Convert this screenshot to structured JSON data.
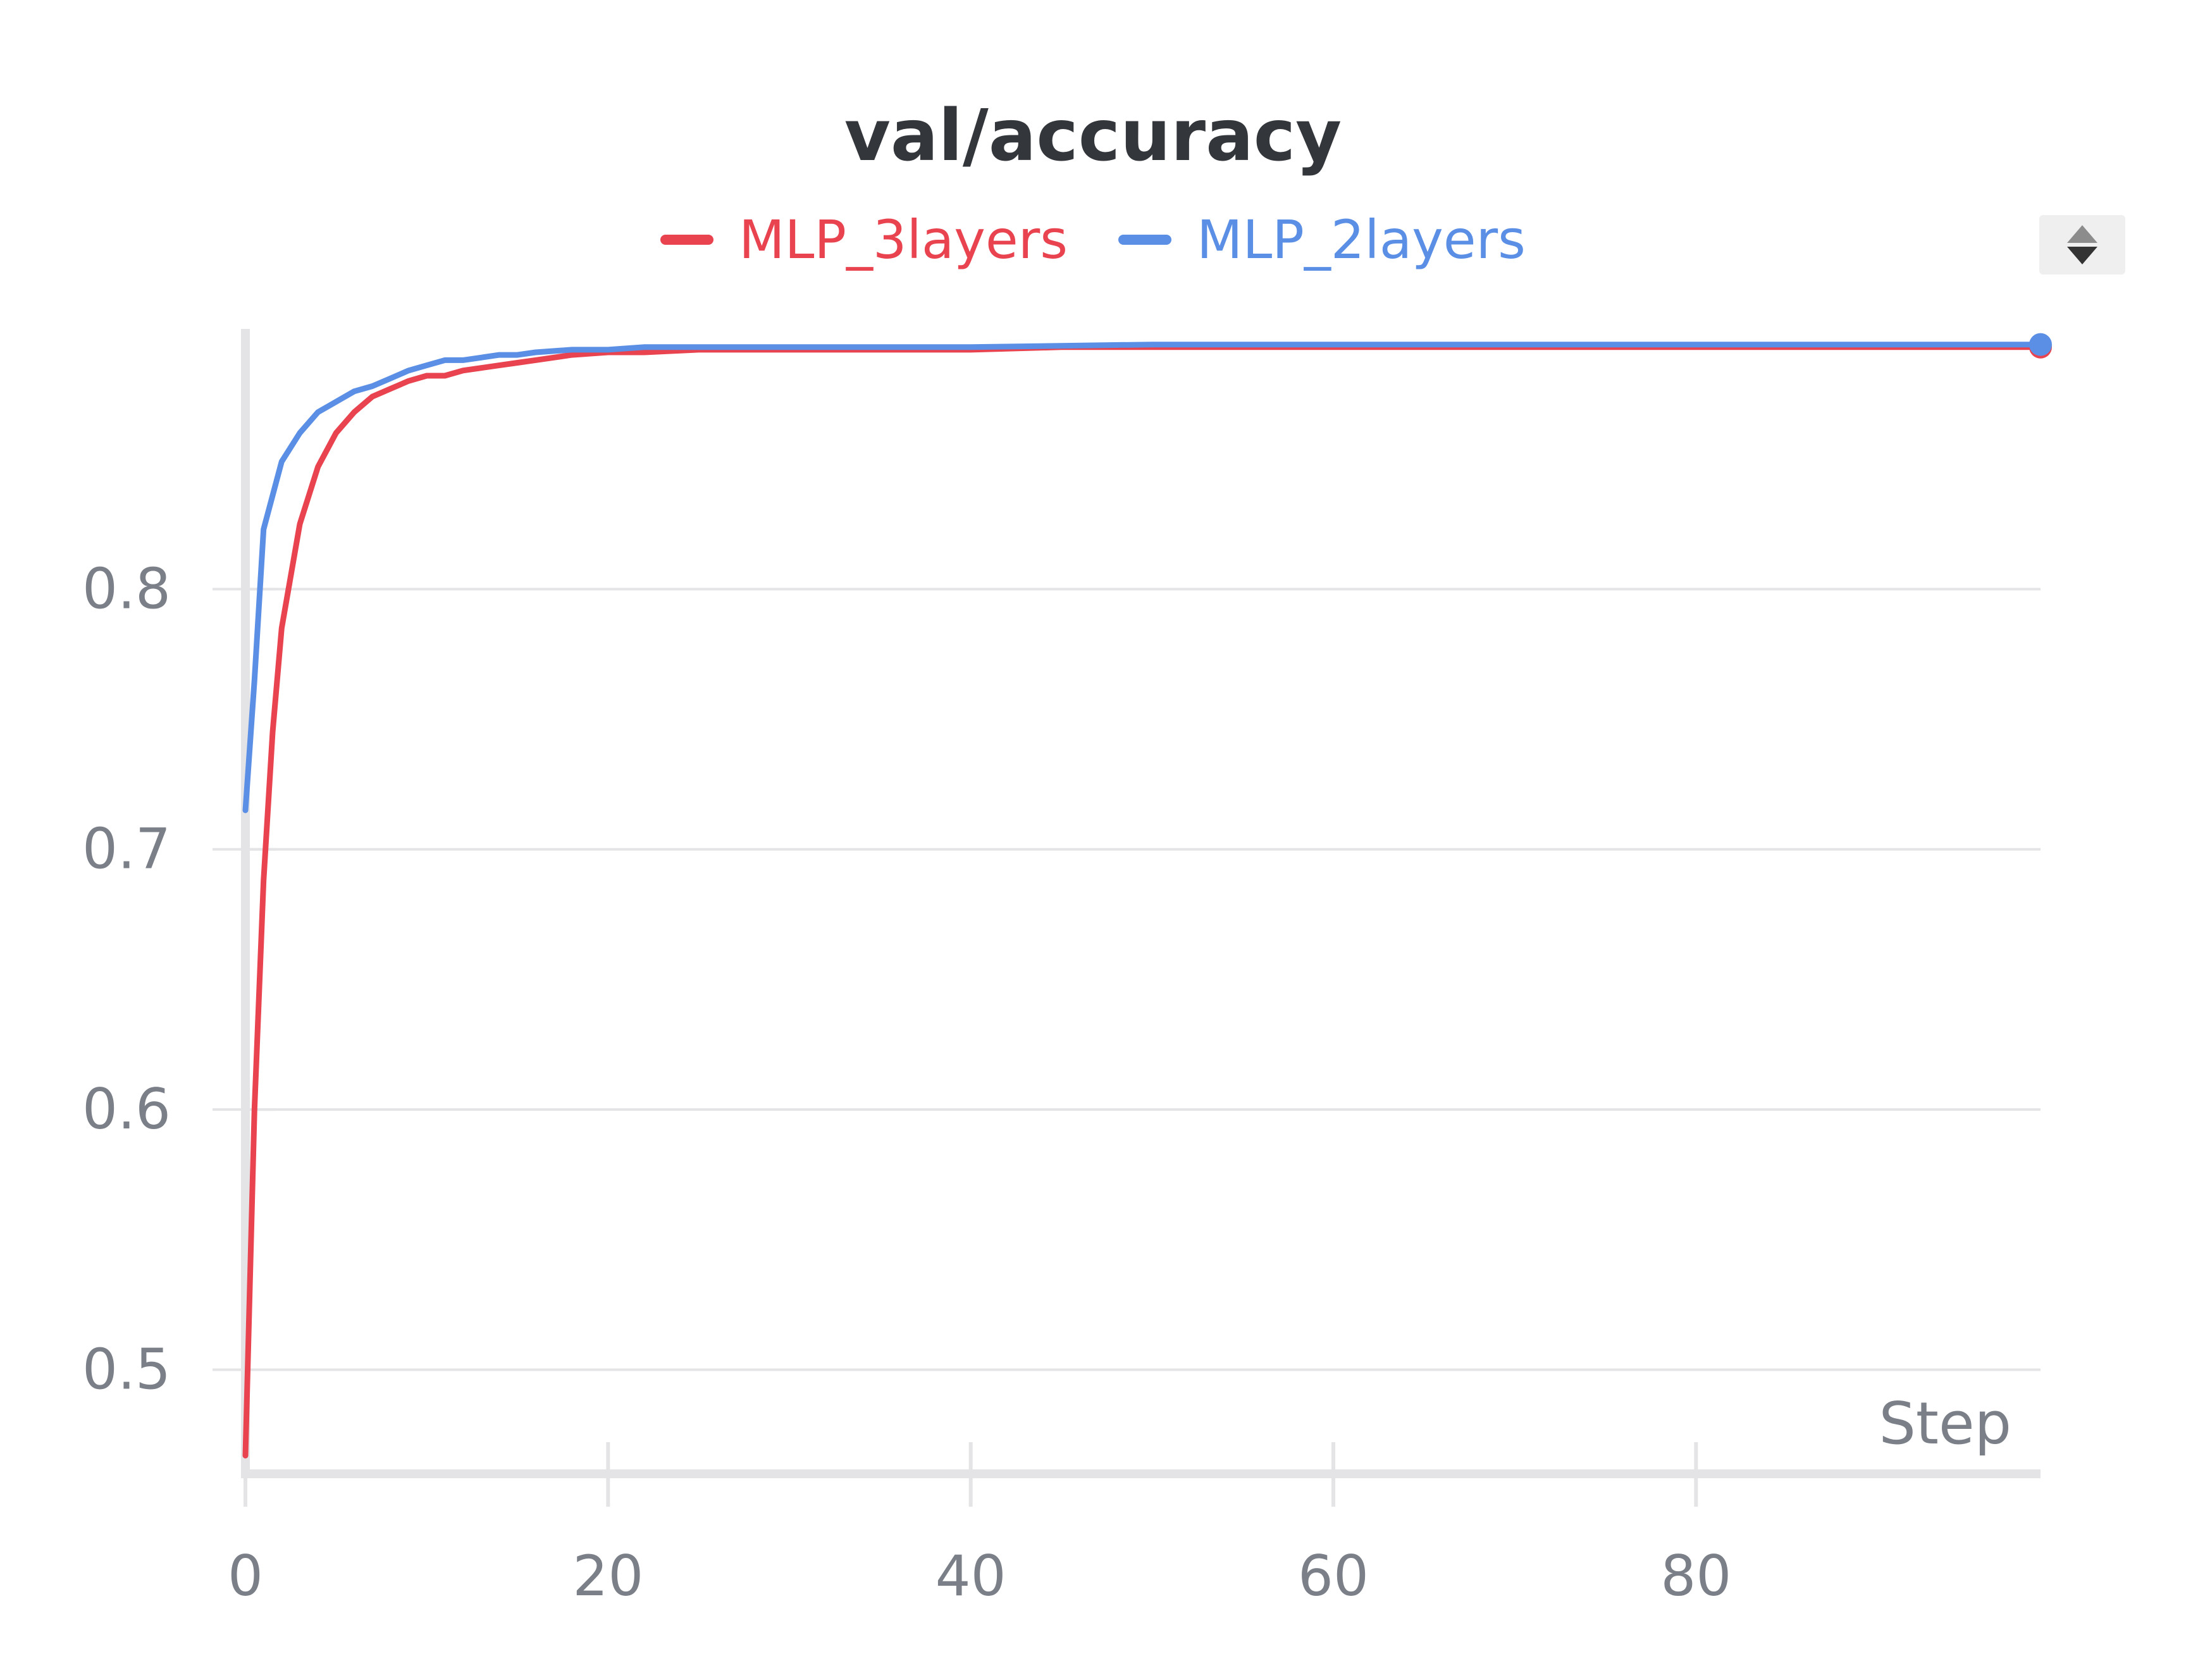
{
  "chart_data": {
    "type": "line",
    "title": "val/accuracy",
    "xlabel": "Step",
    "ylabel": "",
    "xlim": [
      0,
      99
    ],
    "ylim": [
      0.46,
      0.9
    ],
    "x_ticks": [
      0,
      20,
      40,
      60,
      80
    ],
    "y_ticks": [
      0.5,
      0.6,
      0.7,
      0.8
    ],
    "x_tick_labels": [
      "0",
      "20",
      "40",
      "60",
      "80"
    ],
    "y_tick_labels": [
      "0.5",
      "0.6",
      "0.7",
      "0.8"
    ],
    "grid": "horizontal",
    "legend": "top-center",
    "series": [
      {
        "name": "MLP_3layers",
        "color": "#e8434f",
        "points": [
          [
            0,
            0.467
          ],
          [
            0.5,
            0.6
          ],
          [
            1,
            0.688
          ],
          [
            1.5,
            0.745
          ],
          [
            2,
            0.785
          ],
          [
            3,
            0.825
          ],
          [
            4,
            0.847
          ],
          [
            5,
            0.86
          ],
          [
            6,
            0.868
          ],
          [
            7,
            0.874
          ],
          [
            8,
            0.877
          ],
          [
            9,
            0.88
          ],
          [
            10,
            0.882
          ],
          [
            11,
            0.882
          ],
          [
            12,
            0.884
          ],
          [
            13,
            0.885
          ],
          [
            14,
            0.886
          ],
          [
            15,
            0.887
          ],
          [
            16,
            0.888
          ],
          [
            17,
            0.889
          ],
          [
            18,
            0.89
          ],
          [
            20,
            0.891
          ],
          [
            22,
            0.891
          ],
          [
            25,
            0.892
          ],
          [
            30,
            0.892
          ],
          [
            35,
            0.892
          ],
          [
            40,
            0.892
          ],
          [
            45,
            0.893
          ],
          [
            50,
            0.893
          ],
          [
            60,
            0.893
          ],
          [
            70,
            0.893
          ],
          [
            80,
            0.893
          ],
          [
            90,
            0.893
          ],
          [
            99,
            0.893
          ]
        ]
      },
      {
        "name": "MLP_2layers",
        "color": "#5a8fe5",
        "points": [
          [
            0,
            0.715
          ],
          [
            0.5,
            0.765
          ],
          [
            1,
            0.823
          ],
          [
            2,
            0.849
          ],
          [
            3,
            0.86
          ],
          [
            4,
            0.868
          ],
          [
            5,
            0.872
          ],
          [
            6,
            0.876
          ],
          [
            7,
            0.878
          ],
          [
            8,
            0.881
          ],
          [
            9,
            0.884
          ],
          [
            10,
            0.886
          ],
          [
            11,
            0.888
          ],
          [
            12,
            0.888
          ],
          [
            13,
            0.889
          ],
          [
            14,
            0.89
          ],
          [
            15,
            0.89
          ],
          [
            16,
            0.891
          ],
          [
            18,
            0.892
          ],
          [
            20,
            0.892
          ],
          [
            22,
            0.893
          ],
          [
            25,
            0.893
          ],
          [
            30,
            0.893
          ],
          [
            40,
            0.893
          ],
          [
            50,
            0.894
          ],
          [
            60,
            0.894
          ],
          [
            70,
            0.894
          ],
          [
            80,
            0.894
          ],
          [
            90,
            0.894
          ],
          [
            99,
            0.894
          ]
        ]
      }
    ]
  },
  "controls": {
    "sort_icon": "sort-arrows-icon"
  }
}
